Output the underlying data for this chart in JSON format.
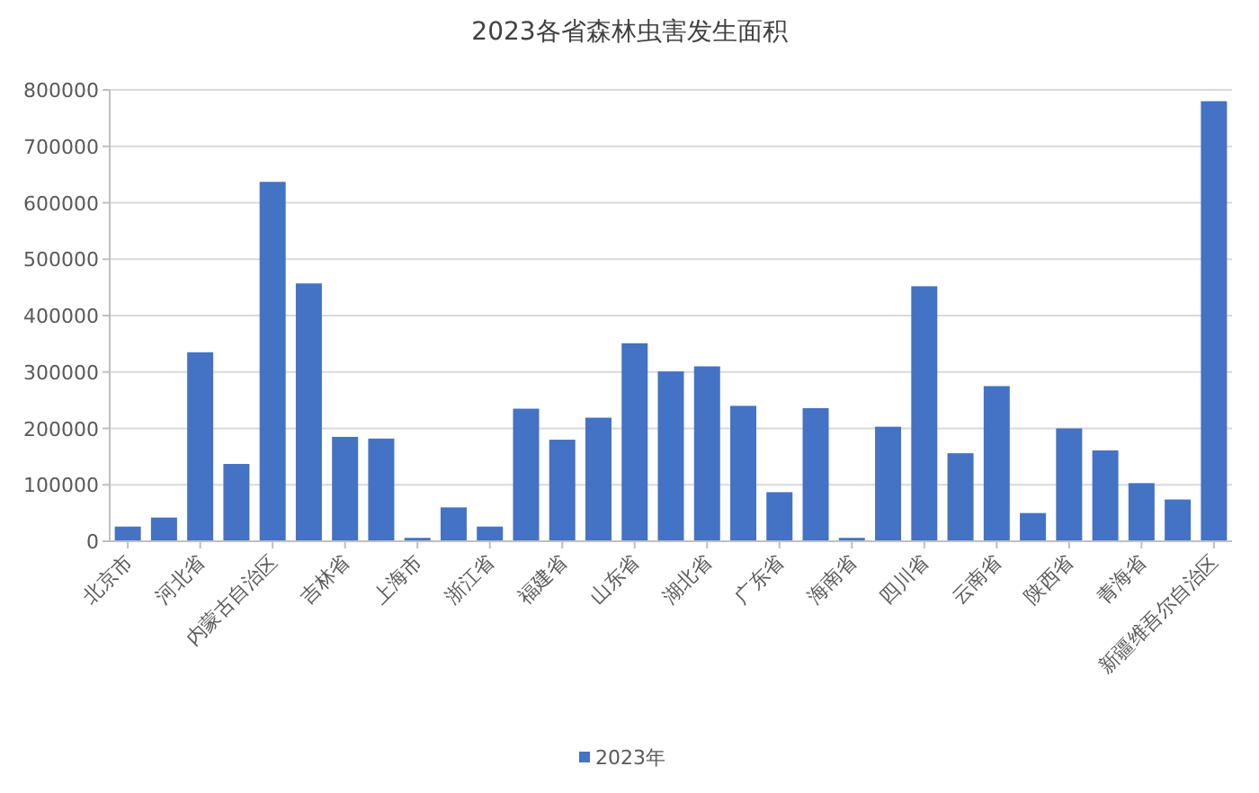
{
  "chart_data": {
    "type": "bar",
    "title": "2023各省森林虫害发生面积",
    "categories": [
      "北京市",
      null,
      "河北省",
      null,
      "内蒙古自治区",
      null,
      "吉林省",
      null,
      "上海市",
      null,
      "浙江省",
      null,
      "福建省",
      null,
      "山东省",
      null,
      "湖北省",
      null,
      "广东省",
      null,
      "海南省",
      null,
      "四川省",
      null,
      "云南省",
      null,
      "陕西省",
      null,
      "青海省",
      null,
      "新疆维吾尔自治区"
    ],
    "series": [
      {
        "name": "2023年",
        "color": "#4472c4",
        "values": [
          26000,
          42000,
          335000,
          137000,
          637000,
          457000,
          185000,
          182000,
          6000,
          60000,
          26000,
          235000,
          180000,
          219000,
          351000,
          301000,
          310000,
          240000,
          87000,
          236000,
          6000,
          203000,
          452000,
          156000,
          275000,
          50000,
          200000,
          161000,
          103000,
          74000,
          780000
        ]
      }
    ],
    "ylim": [
      0,
      800000
    ],
    "yticks": [
      0,
      100000,
      200000,
      300000,
      400000,
      500000,
      600000,
      700000,
      800000
    ],
    "grid": "y",
    "legend": "bottom"
  }
}
